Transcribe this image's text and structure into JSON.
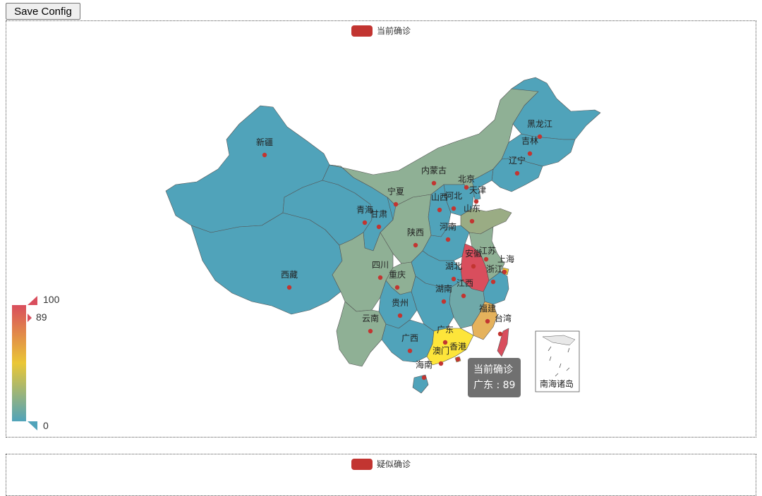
{
  "toolbar": {
    "save_label": "Save Config"
  },
  "colors": {
    "legend": "#c23531",
    "low": "#50a3ba",
    "mid": "#eac736",
    "high": "#d94e5d",
    "tooltip_bg": "#505050"
  },
  "chart_data": [
    {
      "type": "map",
      "map": "china",
      "legend": [
        "当前确诊"
      ],
      "series_name": "当前确诊",
      "visual_map": {
        "min": 0,
        "max": 100,
        "max_label": "100",
        "min_label": "0",
        "current_label": "89",
        "current_value": 89,
        "colors": [
          "#50a3ba",
          "#eac736",
          "#d94e5d"
        ]
      },
      "regions": [
        {
          "name": "新疆"
        },
        {
          "name": "西藏"
        },
        {
          "name": "青海"
        },
        {
          "name": "甘肃"
        },
        {
          "name": "宁夏"
        },
        {
          "name": "内蒙古"
        },
        {
          "name": "黑龙江"
        },
        {
          "name": "吉林"
        },
        {
          "name": "辽宁"
        },
        {
          "name": "北京"
        },
        {
          "name": "天津"
        },
        {
          "name": "河北"
        },
        {
          "name": "山西"
        },
        {
          "name": "山东"
        },
        {
          "name": "河南"
        },
        {
          "name": "陕西"
        },
        {
          "name": "四川"
        },
        {
          "name": "重庆"
        },
        {
          "name": "湖北"
        },
        {
          "name": "安徽"
        },
        {
          "name": "江苏"
        },
        {
          "name": "上海"
        },
        {
          "name": "浙江"
        },
        {
          "name": "江西"
        },
        {
          "name": "湖南"
        },
        {
          "name": "贵州"
        },
        {
          "name": "云南"
        },
        {
          "name": "广西"
        },
        {
          "name": "广东",
          "value": 89
        },
        {
          "name": "福建"
        },
        {
          "name": "台湾"
        },
        {
          "name": "香港"
        },
        {
          "name": "澳门"
        },
        {
          "name": "海南"
        },
        {
          "name": "南海诸岛"
        }
      ],
      "tooltip": {
        "title": "当前确诊",
        "text": "广东 : 89"
      }
    },
    {
      "type": "map",
      "legend": [
        "疑似确诊"
      ]
    }
  ]
}
